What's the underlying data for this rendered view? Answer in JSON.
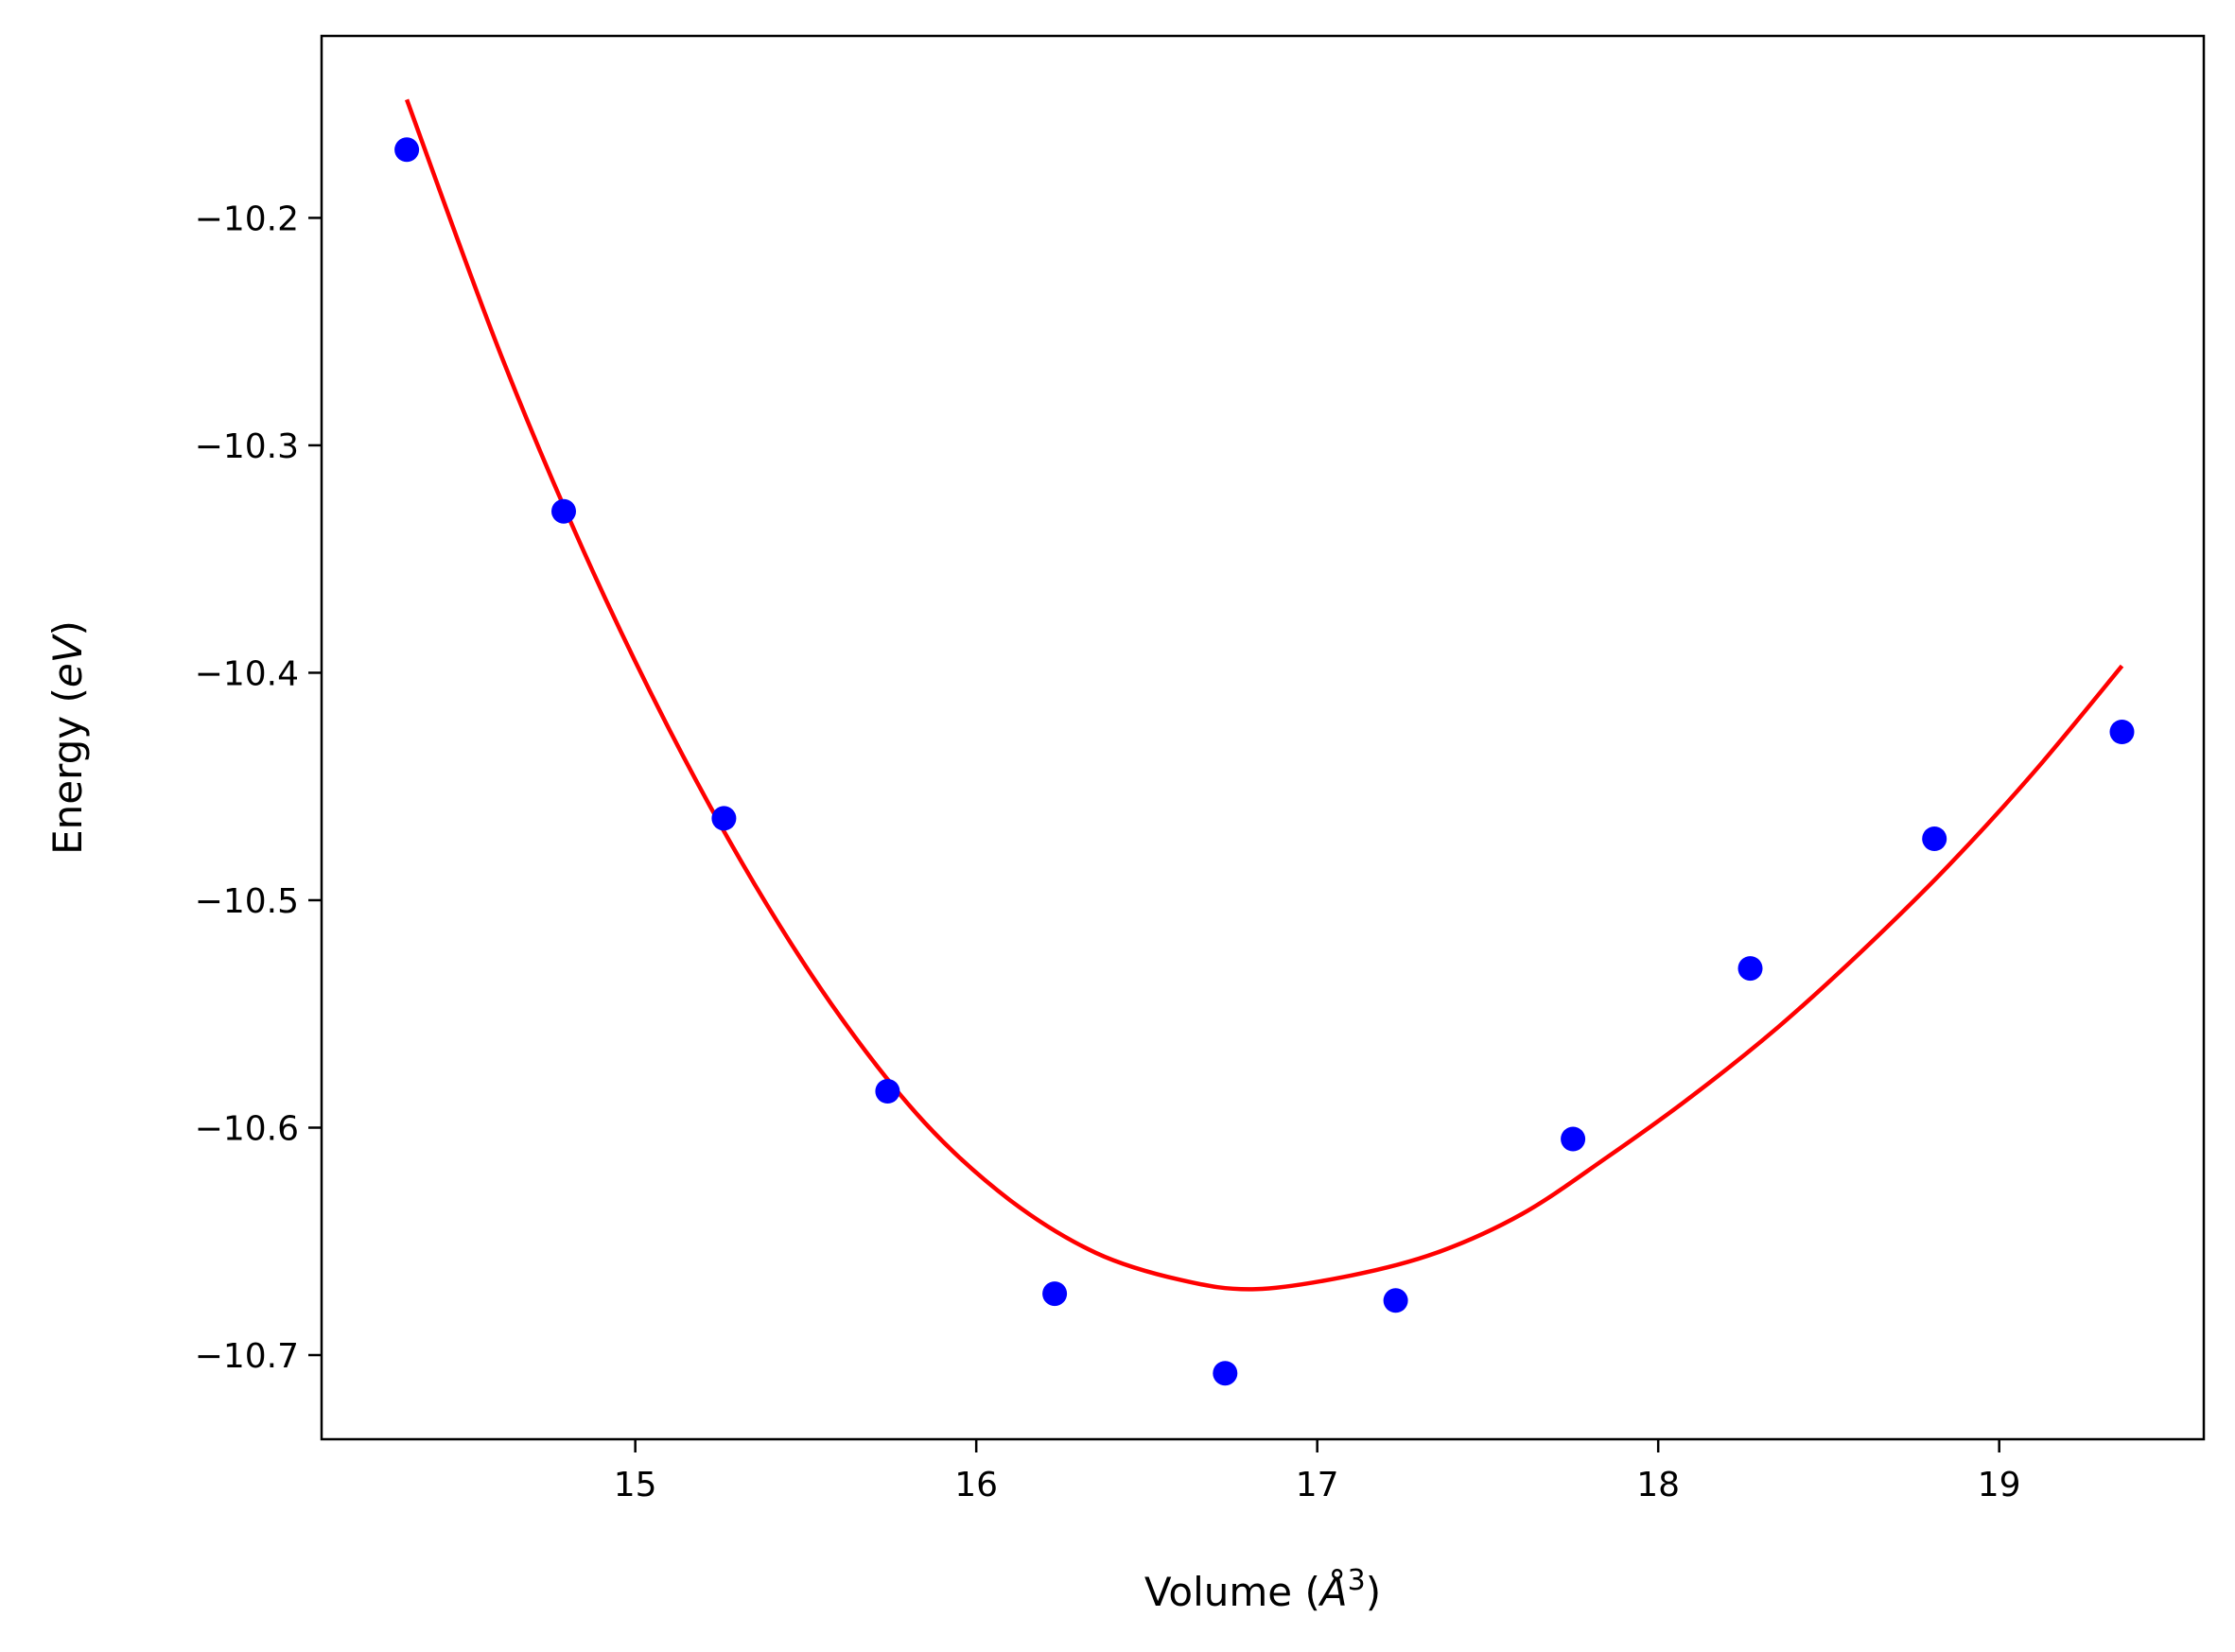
{
  "chart_data": {
    "type": "scatter",
    "title": "",
    "xlabel": {
      "prefix": "Volume (",
      "symbol": "Å",
      "superscript": "3",
      "suffix": ")"
    },
    "ylabel": {
      "prefix": "Energy (",
      "symbol": "eV",
      "suffix": ")"
    },
    "xlim": [
      14.08,
      19.6
    ],
    "ylim": [
      -10.737,
      -10.12
    ],
    "xticks": [
      15,
      16,
      17,
      18,
      19
    ],
    "yticks": [
      -10.2,
      -10.3,
      -10.4,
      -10.5,
      -10.6,
      -10.7
    ],
    "ytick_labels": [
      "−10.2",
      "−10.3",
      "−10.4",
      "−10.5",
      "−10.6",
      "−10.7"
    ],
    "grid": false,
    "legend": "none",
    "series": [
      {
        "kind": "points",
        "color": "#0000ff",
        "x": [
          14.33,
          14.79,
          15.26,
          15.74,
          16.23,
          16.73,
          17.23,
          17.75,
          18.27,
          18.81,
          19.36
        ],
        "y": [
          -10.17,
          -10.329,
          -10.464,
          -10.584,
          -10.673,
          -10.708,
          -10.676,
          -10.605,
          -10.53,
          -10.473,
          -10.426
        ]
      },
      {
        "kind": "fit",
        "color": "#ff0000",
        "x": [
          14.33,
          14.6,
          14.85,
          15.1,
          15.35,
          15.6,
          15.85,
          16.1,
          16.35,
          16.6,
          16.82,
          17.1,
          17.35,
          17.6,
          17.85,
          18.1,
          18.35,
          18.6,
          18.85,
          19.1,
          19.36
        ],
        "y": [
          -10.148,
          -10.258,
          -10.347,
          -10.425,
          -10.493,
          -10.551,
          -10.598,
          -10.632,
          -10.655,
          -10.667,
          -10.671,
          -10.665,
          -10.655,
          -10.638,
          -10.613,
          -10.586,
          -10.556,
          -10.522,
          -10.485,
          -10.444,
          -10.397
        ]
      }
    ]
  }
}
